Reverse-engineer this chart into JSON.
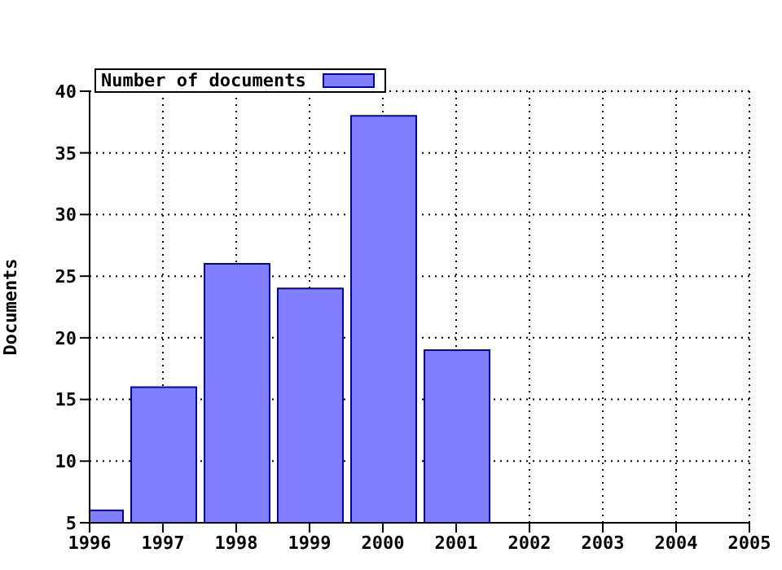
{
  "chart_data": {
    "type": "bar",
    "ylabel": "Documents",
    "x": [
      1996,
      1997,
      1998,
      1999,
      2000,
      2001
    ],
    "series": [
      {
        "name": "Number of documents",
        "color": "#8080ff",
        "values": [
          6,
          16,
          26,
          24,
          38,
          19
        ]
      }
    ],
    "xlim": [
      1996,
      2005
    ],
    "xticks": [
      1996,
      1997,
      1998,
      1999,
      2000,
      2001,
      2002,
      2003,
      2004,
      2005
    ],
    "ylim": [
      5,
      40
    ],
    "yticks": [
      5,
      10,
      15,
      20,
      25,
      30,
      35,
      40
    ],
    "grid": true,
    "legend": "top left"
  }
}
